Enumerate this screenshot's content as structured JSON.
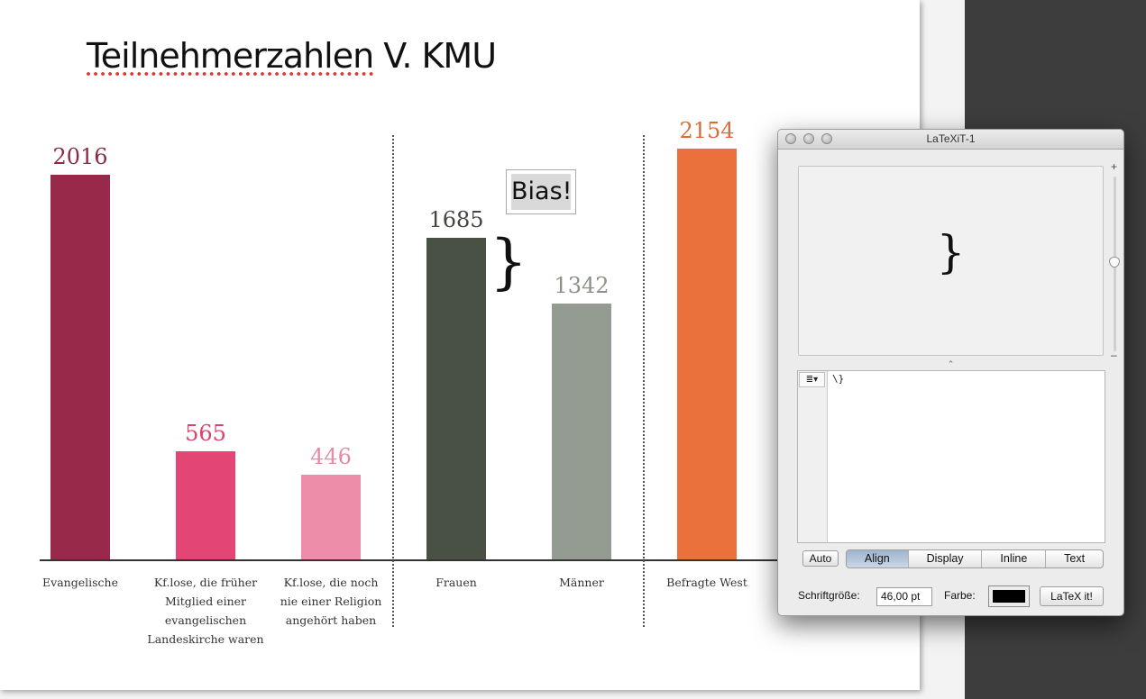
{
  "slide": {
    "title_part1": "Teilnehmerzahlen",
    "title_part2": " V. KMU",
    "annotation": "Bias!",
    "brace_symbol": "}"
  },
  "chart_data": {
    "type": "bar",
    "categories": [
      "Evangelische",
      "Kf.lose, die früher Mitglied einer evangelischen Landeskirche waren",
      "Kf.lose, die noch nie einer Religion angehört haben",
      "Frauen",
      "Männer",
      "Befragte West"
    ],
    "values": [
      2016,
      565,
      446,
      1685,
      1342,
      2154
    ],
    "value_labels": [
      "2016",
      "565",
      "446",
      "1685",
      "1342",
      "2154"
    ],
    "colors": [
      "#99294a",
      "#e34574",
      "#ee8daa",
      "#495044",
      "#949b90",
      "#ea713c"
    ],
    "label_colors": [
      "#8b2b44",
      "#d94370",
      "#e68aa5",
      "#41463f",
      "#8b9287",
      "#de6a3a"
    ],
    "label_lines": [
      [
        "Evangelische"
      ],
      [
        "Kf.lose, die früher",
        "Mitglied einer",
        "evangelischen",
        "Landeskirche waren"
      ],
      [
        "Kf.lose, die noch",
        "nie einer Religion",
        "angehört haben"
      ],
      [
        "Frauen"
      ],
      [
        "Männer"
      ],
      [
        "Befragte West"
      ]
    ],
    "grid": false,
    "legend": "none"
  },
  "latexit": {
    "window_title": "LaTeXiT-1",
    "preview_symbol": "}",
    "zoom_plus": "+",
    "zoom_minus": "–",
    "splitter_glyph": "⌃",
    "editor_menu": "≣▾",
    "source": "\\}",
    "auto_label": "Auto",
    "modes": [
      "Align",
      "Display",
      "Inline",
      "Text"
    ],
    "active_mode": "Align",
    "font_size_label": "Schriftgröße:",
    "font_size_value": "46,00 pt",
    "color_label": "Farbe:",
    "color_value": "#000000",
    "latex_button": "LaTeX it!"
  }
}
